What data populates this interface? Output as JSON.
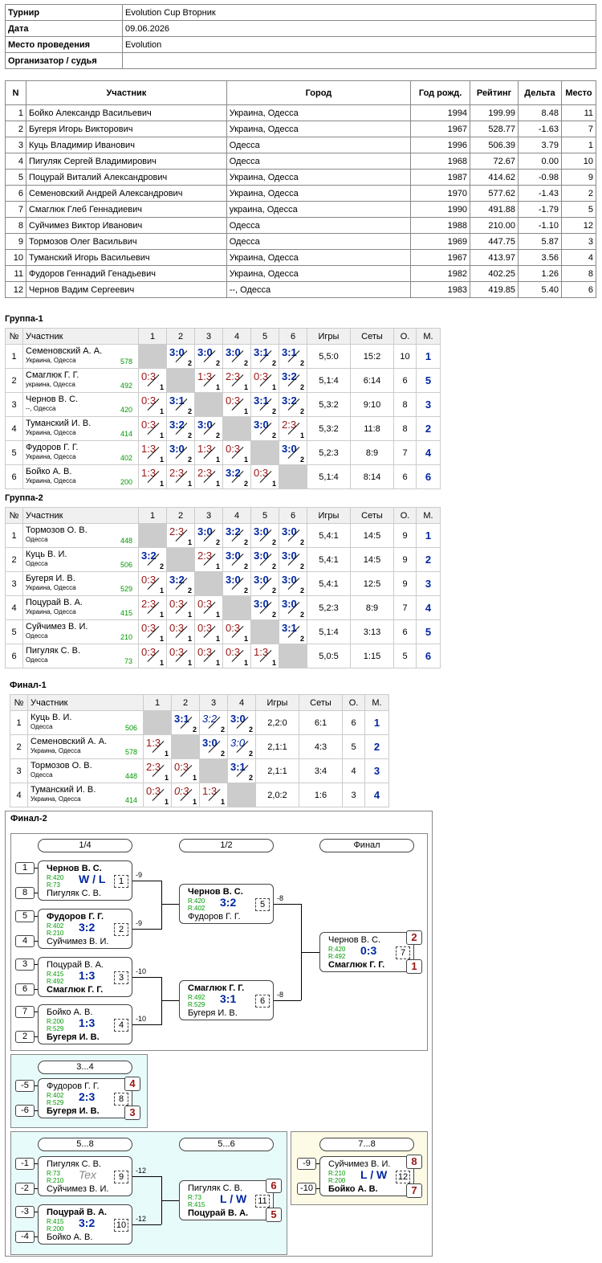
{
  "info": {
    "rows": [
      {
        "k": "Турнир",
        "v": "Evolution Cup Вторник"
      },
      {
        "k": "Дата",
        "v": "09.06.2026"
      },
      {
        "k": "Место проведения",
        "v": "Evolution"
      },
      {
        "k": "Организатор / судья",
        "v": ""
      }
    ]
  },
  "participants": {
    "headers": [
      "N",
      "Участник",
      "Город",
      "Год рожд.",
      "Рейтинг",
      "Дельта",
      "Место"
    ],
    "rows": [
      [
        "1",
        "Бойко Александр Васильевич",
        "Украина, Одесса",
        "1994",
        "199.99",
        "8.48",
        "11"
      ],
      [
        "2",
        "Бугеря Игорь Викторович",
        "Украина, Одесса",
        "1967",
        "528.77",
        "-1.63",
        "7"
      ],
      [
        "3",
        "Куць Владимир Иванович",
        "Одесса",
        "1996",
        "506.39",
        "3.79",
        "1"
      ],
      [
        "4",
        "Пигуляк Сергей Владимирович",
        "Одесса",
        "1968",
        "72.67",
        "0.00",
        "10"
      ],
      [
        "5",
        "Поцурай Виталий Александрович",
        "Украина, Одесса",
        "1987",
        "414.62",
        "-0.98",
        "9"
      ],
      [
        "6",
        "Семеновский Андрей Александрович",
        "Украина, Одесса",
        "1970",
        "577.62",
        "-1.43",
        "2"
      ],
      [
        "7",
        "Смаглюк Глеб Геннадиевич",
        "украина, Одесса",
        "1990",
        "491.88",
        "-1.79",
        "5"
      ],
      [
        "8",
        "Суйчимез Виктор Иванович",
        "Одесса",
        "1988",
        "210.00",
        "-1.10",
        "12"
      ],
      [
        "9",
        "Тормозов Олег Васильвич",
        "Одесса",
        "1969",
        "447.75",
        "5.87",
        "3"
      ],
      [
        "10",
        "Туманский Игорь Васильевич",
        "Украина, Одесса",
        "1967",
        "413.97",
        "3.56",
        "4"
      ],
      [
        "11",
        "Фудоров Геннадий Генадьевич",
        "Украина, Одесса",
        "1982",
        "402.25",
        "1.26",
        "8"
      ],
      [
        "12",
        "Чернов Вадим Сергеевич",
        "--, Одесса",
        "1983",
        "419.85",
        "5.40",
        "6"
      ]
    ]
  },
  "groups": [
    {
      "title": "Группа-1",
      "headers": [
        "№",
        "Участник",
        "1",
        "2",
        "3",
        "4",
        "5",
        "6",
        "Игры",
        "Сеты",
        "О.",
        "М."
      ],
      "rows": [
        {
          "n": "1",
          "name": "Семеновский А. А.",
          "city": "Украина, Одесса",
          "rating": "578",
          "cells": [
            null,
            [
              "3:0",
              "2",
              "w"
            ],
            [
              "3:0",
              "2",
              "w"
            ],
            [
              "3:0",
              "2",
              "w"
            ],
            [
              "3:1",
              "2",
              "w"
            ],
            [
              "3:1",
              "2",
              "w"
            ]
          ],
          "games": "5,5:0",
          "sets": "15:2",
          "pts": "10",
          "place": "1"
        },
        {
          "n": "2",
          "name": "Смаглюк Г. Г.",
          "city": "украина, Одесса",
          "rating": "492",
          "cells": [
            [
              "0:3",
              "1",
              "l"
            ],
            null,
            [
              "1:3",
              "1",
              "l"
            ],
            [
              "2:3",
              "1",
              "l"
            ],
            [
              "0:3",
              "1",
              "l"
            ],
            [
              "3:2",
              "2",
              "w"
            ]
          ],
          "games": "5,1:4",
          "sets": "6:14",
          "pts": "6",
          "place": "5"
        },
        {
          "n": "3",
          "name": "Чернов В. С.",
          "city": "--, Одесса",
          "rating": "420",
          "cells": [
            [
              "0:3",
              "1",
              "l"
            ],
            [
              "3:1",
              "2",
              "w"
            ],
            null,
            [
              "0:3",
              "1",
              "l"
            ],
            [
              "3:1",
              "2",
              "w"
            ],
            [
              "3:2",
              "2",
              "w"
            ]
          ],
          "games": "5,3:2",
          "sets": "9:10",
          "pts": "8",
          "place": "3"
        },
        {
          "n": "4",
          "name": "Туманский И. В.",
          "city": "Украина, Одесса",
          "rating": "414",
          "cells": [
            [
              "0:3",
              "1",
              "l"
            ],
            [
              "3:2",
              "2",
              "w"
            ],
            [
              "3:0",
              "2",
              "w"
            ],
            null,
            [
              "3:0",
              "2",
              "w"
            ],
            [
              "2:3",
              "1",
              "l"
            ]
          ],
          "games": "5,3:2",
          "sets": "11:8",
          "pts": "8",
          "place": "2"
        },
        {
          "n": "5",
          "name": "Фудоров Г. Г.",
          "city": "Украина, Одесса",
          "rating": "402",
          "cells": [
            [
              "1:3",
              "1",
              "l"
            ],
            [
              "3:0",
              "2",
              "w"
            ],
            [
              "1:3",
              "1",
              "l"
            ],
            [
              "0:3",
              "1",
              "l"
            ],
            null,
            [
              "3:0",
              "2",
              "w"
            ]
          ],
          "games": "5,2:3",
          "sets": "8:9",
          "pts": "7",
          "place": "4"
        },
        {
          "n": "6",
          "name": "Бойко А. В.",
          "city": "Украина, Одесса",
          "rating": "200",
          "cells": [
            [
              "1:3",
              "1",
              "l"
            ],
            [
              "2:3",
              "1",
              "l"
            ],
            [
              "2:3",
              "1",
              "l"
            ],
            [
              "3:2",
              "2",
              "w"
            ],
            [
              "0:3",
              "1",
              "l"
            ],
            null
          ],
          "games": "5,1:4",
          "sets": "8:14",
          "pts": "6",
          "place": "6"
        }
      ]
    },
    {
      "title": "Группа-2",
      "headers": [
        "№",
        "Участник",
        "1",
        "2",
        "3",
        "4",
        "5",
        "6",
        "Игры",
        "Сеты",
        "О.",
        "М."
      ],
      "rows": [
        {
          "n": "1",
          "name": "Тормозов О. В.",
          "city": "Одесса",
          "rating": "448",
          "cells": [
            null,
            [
              "2:3",
              "1",
              "l"
            ],
            [
              "3:0",
              "2",
              "w"
            ],
            [
              "3:2",
              "2",
              "w"
            ],
            [
              "3:0",
              "2",
              "w"
            ],
            [
              "3:0",
              "2",
              "w"
            ]
          ],
          "games": "5,4:1",
          "sets": "14:5",
          "pts": "9",
          "place": "1"
        },
        {
          "n": "2",
          "name": "Куць В. И.",
          "city": "Одесса",
          "rating": "506",
          "cells": [
            [
              "3:2",
              "2",
              "w"
            ],
            null,
            [
              "2:3",
              "1",
              "l"
            ],
            [
              "3:0",
              "2",
              "w"
            ],
            [
              "3:0",
              "2",
              "w"
            ],
            [
              "3:0",
              "2",
              "w"
            ]
          ],
          "games": "5,4:1",
          "sets": "14:5",
          "pts": "9",
          "place": "2"
        },
        {
          "n": "3",
          "name": "Бугеря И. В.",
          "city": "Украина, Одесса",
          "rating": "529",
          "cells": [
            [
              "0:3",
              "1",
              "l"
            ],
            [
              "3:2",
              "2",
              "w"
            ],
            null,
            [
              "3:0",
              "2",
              "w"
            ],
            [
              "3:0",
              "2",
              "w"
            ],
            [
              "3:0",
              "2",
              "w"
            ]
          ],
          "games": "5,4:1",
          "sets": "12:5",
          "pts": "9",
          "place": "3"
        },
        {
          "n": "4",
          "name": "Поцурай В. А.",
          "city": "Украина, Одесса",
          "rating": "415",
          "cells": [
            [
              "2:3",
              "1",
              "l"
            ],
            [
              "0:3",
              "1",
              "l"
            ],
            [
              "0:3",
              "1",
              "l"
            ],
            null,
            [
              "3:0",
              "2",
              "w"
            ],
            [
              "3:0",
              "2",
              "w"
            ]
          ],
          "games": "5,2:3",
          "sets": "8:9",
          "pts": "7",
          "place": "4"
        },
        {
          "n": "5",
          "name": "Суйчимез В. И.",
          "city": "Одесса",
          "rating": "210",
          "cells": [
            [
              "0:3",
              "1",
              "l"
            ],
            [
              "0:3",
              "1",
              "l"
            ],
            [
              "0:3",
              "1",
              "l"
            ],
            [
              "0:3",
              "1",
              "l"
            ],
            null,
            [
              "3:1",
              "2",
              "w"
            ]
          ],
          "games": "5,1:4",
          "sets": "3:13",
          "pts": "6",
          "place": "5"
        },
        {
          "n": "6",
          "name": "Пигуляк С. В.",
          "city": "Одесса",
          "rating": "73",
          "cells": [
            [
              "0:3",
              "1",
              "l"
            ],
            [
              "0:3",
              "1",
              "l"
            ],
            [
              "0:3",
              "1",
              "l"
            ],
            [
              "0:3",
              "1",
              "l"
            ],
            [
              "1:3",
              "1",
              "l"
            ],
            null
          ],
          "games": "5,0:5",
          "sets": "1:15",
          "pts": "5",
          "place": "6"
        }
      ]
    },
    {
      "title": "Финал-1",
      "headers": [
        "№",
        "Участник",
        "1",
        "2",
        "3",
        "4",
        "Игры",
        "Сеты",
        "О.",
        "М."
      ],
      "rows": [
        {
          "n": "1",
          "name": "Куць В. И.",
          "city": "Одесса",
          "rating": "506",
          "cells": [
            null,
            [
              "3:1",
              "2",
              "w"
            ],
            [
              "3:2",
              "2",
              "wi"
            ],
            [
              "3:0",
              "2",
              "w"
            ]
          ],
          "games": "2,2:0",
          "sets": "6:1",
          "pts": "6",
          "place": "1"
        },
        {
          "n": "2",
          "name": "Семеновский А. А.",
          "city": "Украина, Одесса",
          "rating": "578",
          "cells": [
            [
              "1:3",
              "1",
              "l"
            ],
            null,
            [
              "3:0",
              "2",
              "w"
            ],
            [
              "3:0",
              "2",
              "wi"
            ]
          ],
          "games": "2,1:1",
          "sets": "4:3",
          "pts": "5",
          "place": "2"
        },
        {
          "n": "3",
          "name": "Тормозов О. В.",
          "city": "Одесса",
          "rating": "448",
          "cells": [
            [
              "2:3",
              "1",
              "l"
            ],
            [
              "0:3",
              "1",
              "l"
            ],
            null,
            [
              "3:1",
              "2",
              "w"
            ]
          ],
          "games": "2,1:1",
          "sets": "3:4",
          "pts": "4",
          "place": "3"
        },
        {
          "n": "4",
          "name": "Туманский И. В.",
          "city": "Украина, Одесса",
          "rating": "414",
          "cells": [
            [
              "0:3",
              "1",
              "l"
            ],
            [
              "0:3",
              "1",
              "li"
            ],
            [
              "1:3",
              "1",
              "l"
            ],
            null
          ],
          "games": "2,0:2",
          "sets": "1:6",
          "pts": "3",
          "place": "4"
        }
      ]
    }
  ],
  "bracket": {
    "title": "Финал-2",
    "rounds": [
      "1/4",
      "1/2",
      "Финал",
      "3...4",
      "5...8",
      "5...6",
      "7...8"
    ],
    "matches": [
      {
        "id": "m1",
        "num": "1",
        "p1": "Чернов В. С.",
        "p2": "Пигуляк С. В.",
        "r1": "R:420",
        "r2": "R:73",
        "score": "W / L",
        "b": 1,
        "s1": "1",
        "s2": "8",
        "next": "-9"
      },
      {
        "id": "m2",
        "num": "2",
        "p1": "Фудоров Г. Г.",
        "p2": "Суйчимез В. И.",
        "r1": "R:402",
        "r2": "R:210",
        "score": "3:2",
        "b": 1,
        "s1": "5",
        "s2": "4",
        "next": "-9"
      },
      {
        "id": "m3",
        "num": "3",
        "p1": "Поцурай В. А.",
        "p2": "Смаглюк Г. Г.",
        "r1": "R:415",
        "r2": "R:492",
        "score": "1:3",
        "b": 2,
        "s1": "3",
        "s2": "6",
        "next": "-10"
      },
      {
        "id": "m4",
        "num": "4",
        "p1": "Бойко А. В.",
        "p2": "Бугеря И. В.",
        "r1": "R:200",
        "r2": "R:529",
        "score": "1:3",
        "b": 2,
        "s1": "7",
        "s2": "2",
        "next": "-10"
      },
      {
        "id": "m5",
        "num": "5",
        "p1": "Чернов В. С.",
        "p2": "Фудоров Г. Г.",
        "r1": "R:420",
        "r2": "R:402",
        "score": "3:2",
        "b": 1,
        "next": "-8"
      },
      {
        "id": "m6",
        "num": "6",
        "p1": "Смаглюк Г. Г.",
        "p2": "Бугеря И. В.",
        "r1": "R:492",
        "r2": "R:529",
        "score": "3:1",
        "b": 1,
        "next": "-8"
      },
      {
        "id": "m7",
        "num": "7",
        "p1": "Чернов В. С.",
        "p2": "Смаглюк Г. Г.",
        "r1": "R:420",
        "r2": "R:492",
        "score": "0:3",
        "b": 2,
        "pl1": "2",
        "pl2": "1"
      },
      {
        "id": "m8",
        "num": "8",
        "p1": "Фудоров Г. Г.",
        "p2": "Бугеря И. В.",
        "r1": "R:402",
        "r2": "R:529",
        "score": "2:3",
        "b": 2,
        "s1": "-5",
        "s2": "-6",
        "pl1": "4",
        "pl2": "3"
      },
      {
        "id": "m9",
        "num": "9",
        "p1": "Пигуляк С. В.",
        "p2": "Суйчимез В. И.",
        "r1": "R:73",
        "r2": "R:210",
        "score": "Tex",
        "b": 0,
        "s1": "-1",
        "s2": "-2",
        "next": "-12"
      },
      {
        "id": "m10",
        "num": "10",
        "p1": "Поцурай В. А.",
        "p2": "Бойко А. В.",
        "r1": "R:415",
        "r2": "R:200",
        "score": "3:2",
        "b": 1,
        "s1": "-3",
        "s2": "-4",
        "next": "-12"
      },
      {
        "id": "m11",
        "num": "11",
        "p1": "Пигуляк С. В.",
        "p2": "Поцурай В. А.",
        "r1": "R:73",
        "r2": "R:415",
        "score": "L / W",
        "b": 2,
        "pl1": "6",
        "pl2": "5"
      },
      {
        "id": "m12",
        "num": "12",
        "p1": "Суйчимез В. И.",
        "p2": "Бойко А. В.",
        "r1": "R:210",
        "r2": "R:200",
        "score": "L / W",
        "b": 2,
        "s1": "-9",
        "s2": "-10",
        "pl1": "8",
        "pl2": "7"
      }
    ]
  }
}
